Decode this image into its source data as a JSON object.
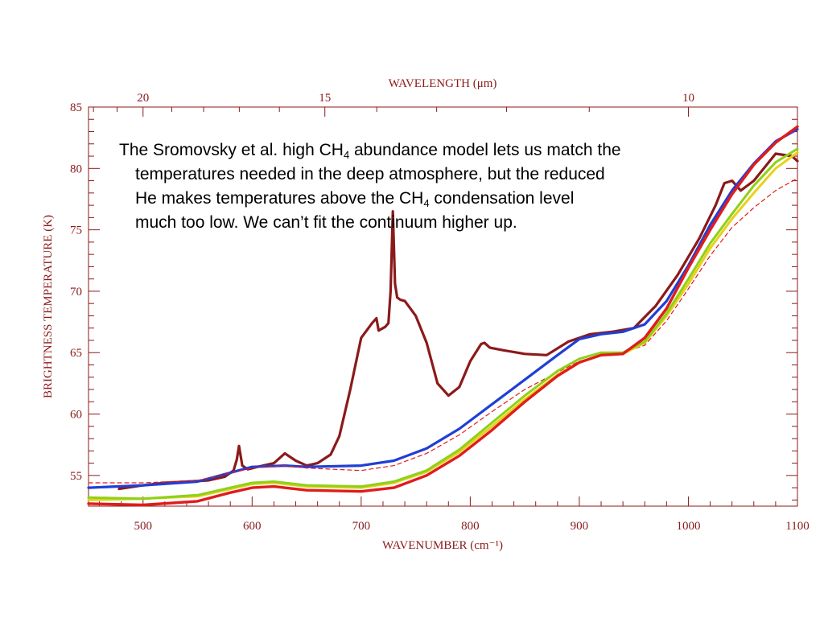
{
  "chart_data": {
    "type": "line",
    "xlabel": "WAVENUMBER (cm⁻¹)",
    "ylabel": "BRIGHTNESS TEMPERATURE (K)",
    "x2label": "WAVELENGTH (μm)",
    "xlim": [
      450,
      1100
    ],
    "ylim": [
      52.5,
      85
    ],
    "x_ticks": [
      "500",
      "600",
      "700",
      "800",
      "900",
      "1000",
      "1100"
    ],
    "y_ticks": [
      "55",
      "60",
      "65",
      "70",
      "75",
      "80",
      "85"
    ],
    "x2_ticks": [
      {
        "label": "20",
        "wavenumber": 500
      },
      {
        "label": "15",
        "wavenumber": 666.7
      },
      {
        "label": "10",
        "wavenumber": 1000
      }
    ],
    "series": [
      {
        "name": "",
        "color": "#8b1a1a",
        "width": 3.2,
        "dash": "",
        "x": [
          478,
          500,
          520,
          540,
          560,
          575,
          583,
          586,
          588,
          591,
          596,
          605,
          620,
          630,
          640,
          650,
          660,
          672,
          680,
          690,
          700,
          710,
          714,
          716,
          722,
          725,
          727,
          729,
          731,
          733,
          736,
          740,
          750,
          760,
          770,
          780,
          790,
          800,
          810,
          813,
          818,
          830,
          850,
          870,
          890,
          910,
          930,
          950,
          970,
          990,
          1010,
          1025,
          1033,
          1040,
          1048,
          1060,
          1080,
          1095,
          1100
        ],
        "y": [
          53.9,
          54.2,
          54.4,
          54.5,
          54.6,
          54.9,
          55.4,
          56.3,
          57.4,
          55.8,
          55.5,
          55.7,
          56.0,
          56.8,
          56.2,
          55.8,
          56.0,
          56.7,
          58.2,
          62.0,
          66.2,
          67.4,
          67.8,
          66.8,
          67.1,
          67.4,
          70.0,
          76.5,
          70.6,
          69.5,
          69.3,
          69.2,
          68.0,
          65.8,
          62.5,
          61.5,
          62.2,
          64.3,
          65.7,
          65.8,
          65.4,
          65.2,
          64.9,
          64.8,
          65.9,
          66.5,
          66.7,
          67.0,
          68.8,
          71.3,
          74.3,
          77.0,
          78.8,
          79.0,
          78.2,
          79.0,
          81.2,
          81.0,
          80.6
        ]
      },
      {
        "name": "",
        "color": "#1f3fd6",
        "width": 3.2,
        "dash": "",
        "x": [
          450,
          500,
          550,
          575,
          600,
          630,
          650,
          700,
          730,
          760,
          790,
          820,
          850,
          880,
          900,
          920,
          940,
          960,
          980,
          1000,
          1020,
          1040,
          1060,
          1080,
          1100
        ],
        "y": [
          54.0,
          54.2,
          54.5,
          55.1,
          55.7,
          55.8,
          55.7,
          55.8,
          56.2,
          57.2,
          58.8,
          60.8,
          62.8,
          64.8,
          66.1,
          66.5,
          66.7,
          67.3,
          69.2,
          72.1,
          75.4,
          78.2,
          80.4,
          82.2,
          83.2
        ]
      },
      {
        "name": "",
        "color": "#e41a1a",
        "width": 1.2,
        "dash": "5,4",
        "x": [
          450,
          500,
          550,
          575,
          600,
          630,
          650,
          700,
          730,
          760,
          790,
          820,
          850,
          880,
          900,
          920,
          940,
          960,
          980,
          1000,
          1020,
          1040,
          1060,
          1080,
          1100
        ],
        "y": [
          54.4,
          54.4,
          54.6,
          55.1,
          55.6,
          55.8,
          55.6,
          55.4,
          55.8,
          56.8,
          58.3,
          60.2,
          62.0,
          63.4,
          64.3,
          64.8,
          65.0,
          65.6,
          67.6,
          70.2,
          72.9,
          75.2,
          76.8,
          78.2,
          79.2
        ]
      },
      {
        "name": "",
        "color": "#e8d11a",
        "width": 3.0,
        "dash": "",
        "x": [
          450,
          500,
          550,
          580,
          600,
          620,
          650,
          700,
          730,
          760,
          790,
          820,
          850,
          880,
          900,
          920,
          940,
          960,
          980,
          1000,
          1020,
          1040,
          1060,
          1080,
          1100
        ],
        "y": [
          53.0,
          53.1,
          53.3,
          53.9,
          54.3,
          54.4,
          54.1,
          54.0,
          54.4,
          55.3,
          56.9,
          59.0,
          61.2,
          63.2,
          64.2,
          64.8,
          64.9,
          65.8,
          68.0,
          70.6,
          73.5,
          75.9,
          78.0,
          80.0,
          81.3
        ]
      },
      {
        "name": "",
        "color": "#8ed11a",
        "width": 3.0,
        "dash": "",
        "x": [
          450,
          500,
          550,
          580,
          600,
          620,
          650,
          700,
          730,
          760,
          790,
          820,
          850,
          880,
          900,
          920,
          940,
          960,
          980,
          1000,
          1020,
          1040,
          1060,
          1080,
          1100
        ],
        "y": [
          53.2,
          53.1,
          53.4,
          54.0,
          54.4,
          54.5,
          54.2,
          54.1,
          54.5,
          55.4,
          57.1,
          59.3,
          61.5,
          63.5,
          64.5,
          65.0,
          65.0,
          65.9,
          68.2,
          71.0,
          73.9,
          76.3,
          78.6,
          80.5,
          81.6
        ]
      },
      {
        "name": "",
        "color": "#e01c1c",
        "width": 3.4,
        "dash": "",
        "x": [
          450,
          500,
          550,
          580,
          600,
          620,
          650,
          700,
          730,
          760,
          790,
          820,
          850,
          880,
          900,
          920,
          940,
          960,
          980,
          1000,
          1020,
          1040,
          1060,
          1080,
          1100
        ],
        "y": [
          52.7,
          52.6,
          52.9,
          53.6,
          54.0,
          54.1,
          53.8,
          53.7,
          54.0,
          55.0,
          56.6,
          58.7,
          61.0,
          63.1,
          64.2,
          64.8,
          64.9,
          66.2,
          68.6,
          71.9,
          75.0,
          77.9,
          80.3,
          82.1,
          83.4
        ]
      }
    ]
  },
  "annotation": {
    "l1a": "The Sromovsky et al. high CH",
    "l1sub": "4",
    "l1b": " abundance model lets us match the",
    "l2": "temperatures needed in the deep atmosphere, but the reduced",
    "l3a": "He makes temperatures above the CH",
    "l3sub": "4",
    "l3b": " condensation level",
    "l4": "much too low.  We can’t fit the continuum higher up."
  }
}
